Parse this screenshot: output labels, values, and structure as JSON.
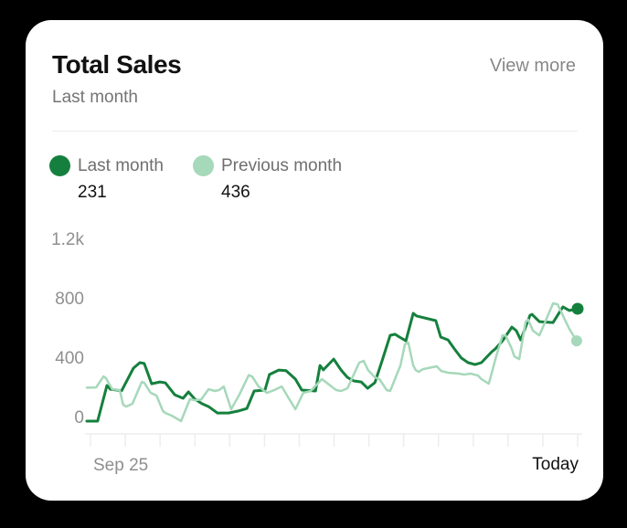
{
  "card": {
    "title": "Total Sales",
    "subtitle": "Last month",
    "view_more_label": "View more"
  },
  "legend": [
    {
      "label": "Last month",
      "value": "231",
      "color": "#15803d"
    },
    {
      "label": "Previous month",
      "value": "436",
      "color": "#a6d8ba"
    }
  ],
  "colors": {
    "background": "#000000",
    "card": "#ffffff",
    "accent_dark_green": "#15803d",
    "accent_light_green": "#a6d8ba",
    "axis": "#ededed",
    "muted_text": "#8f8f8f"
  },
  "chart_data": {
    "type": "line",
    "title": "Total Sales",
    "subtitle": "Last month",
    "grid": false,
    "legend_position": "top-left",
    "x_axis": {
      "start_label": "Sep 25",
      "end_label": "Today",
      "tick_count": 15
    },
    "y_axis": {
      "range": [
        0,
        1200
      ],
      "ticks": [
        {
          "value": 1200,
          "label": "1.2k"
        },
        {
          "value": 800,
          "label": "800"
        },
        {
          "value": 400,
          "label": "400"
        },
        {
          "value": 0,
          "label": "0"
        }
      ]
    },
    "series": [
      {
        "name": "Last month",
        "stat_value": 231,
        "color": "#15803d",
        "stroke_width": 3,
        "end_dot_radius": 6.5,
        "points": [
          [
            0.0,
            0
          ],
          [
            0.022,
            0
          ],
          [
            0.041,
            240
          ],
          [
            0.048,
            215
          ],
          [
            0.071,
            205
          ],
          [
            0.095,
            357
          ],
          [
            0.108,
            394
          ],
          [
            0.117,
            388
          ],
          [
            0.132,
            252
          ],
          [
            0.149,
            264
          ],
          [
            0.16,
            258
          ],
          [
            0.179,
            178
          ],
          [
            0.196,
            154
          ],
          [
            0.207,
            197
          ],
          [
            0.22,
            148
          ],
          [
            0.235,
            117
          ],
          [
            0.248,
            98
          ],
          [
            0.266,
            55
          ],
          [
            0.289,
            55
          ],
          [
            0.311,
            70
          ],
          [
            0.326,
            85
          ],
          [
            0.341,
            203
          ],
          [
            0.363,
            209
          ],
          [
            0.372,
            314
          ],
          [
            0.391,
            344
          ],
          [
            0.406,
            340
          ],
          [
            0.425,
            283
          ],
          [
            0.438,
            209
          ],
          [
            0.466,
            203
          ],
          [
            0.475,
            375
          ],
          [
            0.482,
            345
          ],
          [
            0.503,
            418
          ],
          [
            0.518,
            344
          ],
          [
            0.531,
            295
          ],
          [
            0.544,
            271
          ],
          [
            0.559,
            264
          ],
          [
            0.572,
            221
          ],
          [
            0.587,
            260
          ],
          [
            0.601,
            400
          ],
          [
            0.618,
            578
          ],
          [
            0.628,
            585
          ],
          [
            0.637,
            566
          ],
          [
            0.65,
            541
          ],
          [
            0.665,
            726
          ],
          [
            0.672,
            708
          ],
          [
            0.711,
            677
          ],
          [
            0.721,
            566
          ],
          [
            0.736,
            547
          ],
          [
            0.749,
            486
          ],
          [
            0.763,
            425
          ],
          [
            0.777,
            394
          ],
          [
            0.791,
            381
          ],
          [
            0.804,
            394
          ],
          [
            0.825,
            467
          ],
          [
            0.832,
            486
          ],
          [
            0.847,
            541
          ],
          [
            0.866,
            633
          ],
          [
            0.875,
            609
          ],
          [
            0.884,
            547
          ],
          [
            0.903,
            713
          ],
          [
            0.907,
            719
          ],
          [
            0.922,
            670
          ],
          [
            0.95,
            664
          ],
          [
            0.97,
            770
          ],
          [
            0.983,
            745
          ],
          [
            1.0,
            757
          ]
        ]
      },
      {
        "name": "Previous month",
        "stat_value": 436,
        "color": "#a6d8ba",
        "stroke_width": 2.5,
        "end_dot_radius": 6,
        "points": [
          [
            0.0,
            225
          ],
          [
            0.019,
            227
          ],
          [
            0.034,
            301
          ],
          [
            0.039,
            289
          ],
          [
            0.052,
            215
          ],
          [
            0.067,
            209
          ],
          [
            0.074,
            111
          ],
          [
            0.08,
            98
          ],
          [
            0.093,
            117
          ],
          [
            0.112,
            264
          ],
          [
            0.117,
            258
          ],
          [
            0.13,
            191
          ],
          [
            0.142,
            172
          ],
          [
            0.155,
            68
          ],
          [
            0.16,
            55
          ],
          [
            0.173,
            37
          ],
          [
            0.192,
            0
          ],
          [
            0.21,
            148
          ],
          [
            0.22,
            141
          ],
          [
            0.233,
            145
          ],
          [
            0.248,
            215
          ],
          [
            0.261,
            203
          ],
          [
            0.27,
            210
          ],
          [
            0.279,
            233
          ],
          [
            0.294,
            80
          ],
          [
            0.311,
            180
          ],
          [
            0.33,
            310
          ],
          [
            0.337,
            300
          ],
          [
            0.35,
            233
          ],
          [
            0.367,
            190
          ],
          [
            0.382,
            209
          ],
          [
            0.397,
            233
          ],
          [
            0.425,
            80
          ],
          [
            0.441,
            190
          ],
          [
            0.456,
            203
          ],
          [
            0.479,
            283
          ],
          [
            0.508,
            209
          ],
          [
            0.518,
            203
          ],
          [
            0.531,
            221
          ],
          [
            0.555,
            394
          ],
          [
            0.564,
            406
          ],
          [
            0.573,
            344
          ],
          [
            0.587,
            295
          ],
          [
            0.596,
            283
          ],
          [
            0.611,
            209
          ],
          [
            0.618,
            203
          ],
          [
            0.639,
            375
          ],
          [
            0.648,
            517
          ],
          [
            0.655,
            529
          ],
          [
            0.665,
            375
          ],
          [
            0.67,
            344
          ],
          [
            0.676,
            332
          ],
          [
            0.685,
            350
          ],
          [
            0.704,
            363
          ],
          [
            0.713,
            369
          ],
          [
            0.722,
            338
          ],
          [
            0.736,
            326
          ],
          [
            0.758,
            320
          ],
          [
            0.769,
            314
          ],
          [
            0.782,
            320
          ],
          [
            0.797,
            307
          ],
          [
            0.804,
            283
          ],
          [
            0.819,
            252
          ],
          [
            0.834,
            436
          ],
          [
            0.847,
            578
          ],
          [
            0.853,
            578
          ],
          [
            0.866,
            486
          ],
          [
            0.871,
            436
          ],
          [
            0.881,
            418
          ],
          [
            0.894,
            670
          ],
          [
            0.899,
            683
          ],
          [
            0.909,
            609
          ],
          [
            0.922,
            578
          ],
          [
            0.95,
            793
          ],
          [
            0.959,
            787
          ],
          [
            0.983,
            621
          ],
          [
            0.998,
            541
          ]
        ]
      }
    ]
  }
}
